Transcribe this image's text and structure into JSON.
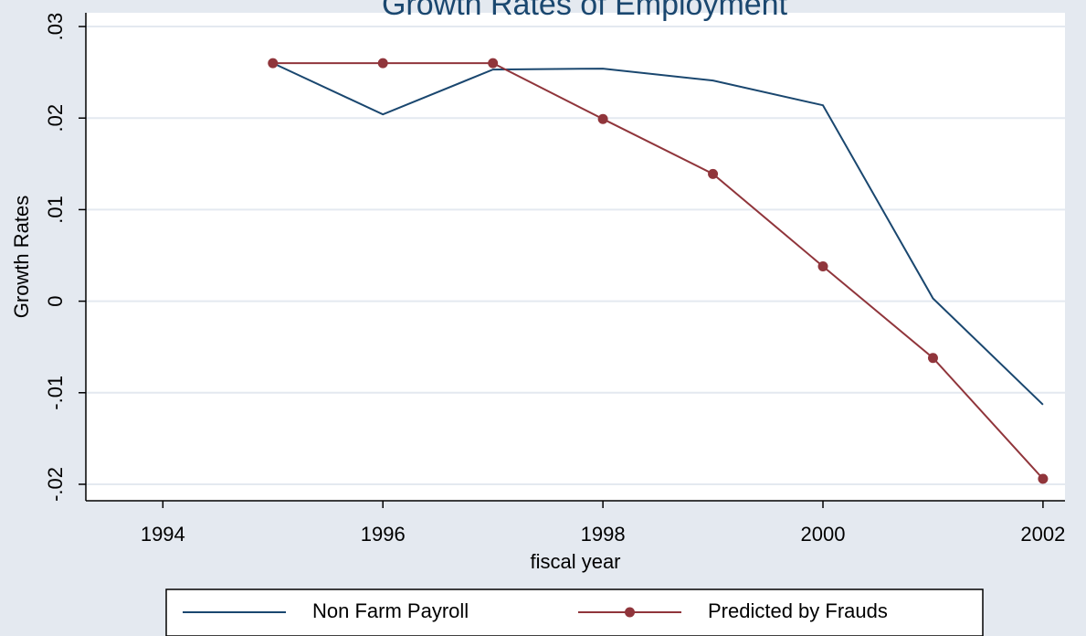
{
  "chart_data": {
    "type": "line",
    "title": "Growth Rates of Employment",
    "xlabel": "fiscal year",
    "ylabel": "Growth Rates",
    "xlim": [
      1993.3,
      2002.2
    ],
    "ylim": [
      -0.0218,
      0.0315
    ],
    "x_ticks": [
      1994,
      1996,
      1998,
      2000,
      2002
    ],
    "x_tick_labels": [
      "1994",
      "1996",
      "1998",
      "2000",
      "2002"
    ],
    "y_ticks": [
      -0.02,
      -0.01,
      0,
      0.01,
      0.02,
      0.03
    ],
    "y_tick_labels": [
      "-.02",
      "-.01",
      "0",
      ".01",
      ".02",
      ".03"
    ],
    "grid": true,
    "legend": "bottom",
    "series": [
      {
        "name": "Non Farm Payroll",
        "color": "#1a476f",
        "marker": "none",
        "x": [
          1995,
          1996,
          1997,
          1998,
          1999,
          2000,
          2001,
          2002
        ],
        "y": [
          0.026,
          0.0204,
          0.0253,
          0.0254,
          0.0241,
          0.0214,
          0.0003,
          -0.0113
        ]
      },
      {
        "name": "Predicted by Frauds",
        "color": "#90353b",
        "marker": "circle",
        "x": [
          1995,
          1996,
          1997,
          1998,
          1999,
          2000,
          2001,
          2002
        ],
        "y": [
          0.026,
          0.026,
          0.026,
          0.0199,
          0.0139,
          0.0038,
          -0.0062,
          -0.0194
        ]
      }
    ]
  }
}
